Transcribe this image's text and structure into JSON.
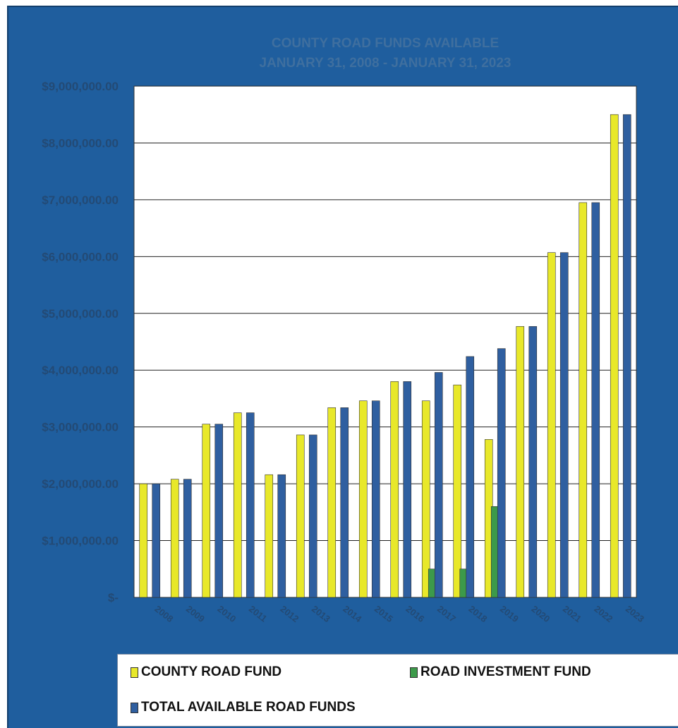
{
  "chart_data": {
    "type": "bar",
    "title": "COUNTY ROAD FUNDS AVAILABLE",
    "subtitle": "JANUARY 31, 2008 - JANUARY 31, 2023",
    "categories": [
      "2008",
      "2009",
      "2010",
      "2011",
      "2012",
      "2013",
      "2014",
      "2015",
      "2016",
      "2017",
      "2018",
      "2019",
      "2020",
      "2021",
      "2022",
      "2023"
    ],
    "series": [
      {
        "name": "COUNTY ROAD FUND",
        "color": "#e8e82a",
        "values": [
          2000000,
          2080000,
          3050000,
          3250000,
          2160000,
          2860000,
          3340000,
          3460000,
          3800000,
          3460000,
          3740000,
          2780000,
          4770000,
          6070000,
          6950000,
          8500000
        ]
      },
      {
        "name": "ROAD INVESTMENT FUND",
        "color": "#3c9a4a",
        "values": [
          0,
          0,
          0,
          0,
          0,
          0,
          0,
          0,
          0,
          500000,
          500000,
          1600000,
          0,
          0,
          0,
          0
        ]
      },
      {
        "name": "TOTAL AVAILABLE ROAD FUNDS",
        "color": "#2f5fa0",
        "values": [
          2000000,
          2080000,
          3050000,
          3250000,
          2160000,
          2860000,
          3340000,
          3460000,
          3800000,
          3960000,
          4240000,
          4380000,
          4770000,
          6070000,
          6950000,
          8500000
        ]
      }
    ],
    "yticks": [
      0,
      1000000,
      2000000,
      3000000,
      4000000,
      5000000,
      6000000,
      7000000,
      8000000,
      9000000
    ],
    "ytick_labels": [
      "$-",
      "$1,000,000.00",
      "$2,000,000.00",
      "$3,000,000.00",
      "$4,000,000.00",
      "$5,000,000.00",
      "$6,000,000.00",
      "$7,000,000.00",
      "$8,000,000.00",
      "$9,000,000.00"
    ],
    "ylim": [
      0,
      9000000
    ],
    "grid": true,
    "legend_position": "bottom"
  }
}
